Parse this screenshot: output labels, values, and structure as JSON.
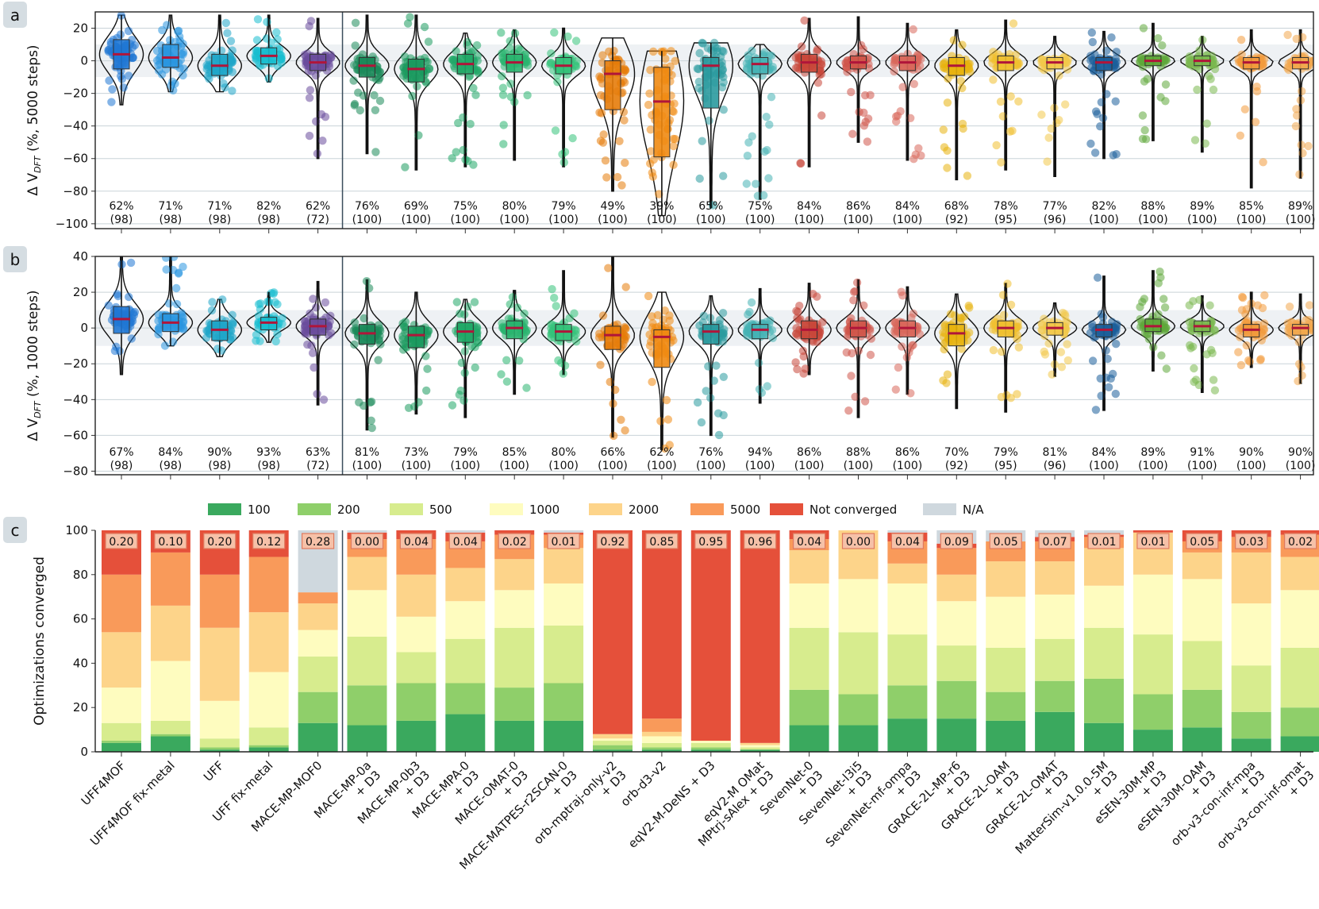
{
  "methods": [
    {
      "name": "UFF4MOF",
      "color": "#1f77d4"
    },
    {
      "name": "UFF4MOF fix-metal",
      "color": "#2a96e0"
    },
    {
      "name": "UFF",
      "color": "#1fa6c9"
    },
    {
      "name": "UFF fix-metal",
      "color": "#17becf"
    },
    {
      "name": "MACE-MP-MOF0",
      "color": "#6a4c9c"
    },
    {
      "name": "MACE-MP-0a\n+ D3",
      "color": "#1b8a5a"
    },
    {
      "name": "MACE-MP-0b3\n+ D3",
      "color": "#1b9a5f"
    },
    {
      "name": "MACE-MPA-0\n+ D3",
      "color": "#21a867"
    },
    {
      "name": "MACE-OMAT-0\n+ D3",
      "color": "#2ab56f"
    },
    {
      "name": "MACE-MATPES-r2SCAN-0\n+ D3",
      "color": "#35c27a"
    },
    {
      "name": "orb-mptraj-only-v2\n+ D3",
      "color": "#e57c0a"
    },
    {
      "name": "orb-d3-v2",
      "color": "#f08a12"
    },
    {
      "name": "eqV2-M-DeNS + D3",
      "color": "#2a9a9e"
    },
    {
      "name": "eqV2-M OMat\nMPtrj-sAlex + D3",
      "color": "#45b3b5"
    },
    {
      "name": "SevenNet-0\n+ D3",
      "color": "#c9473a"
    },
    {
      "name": "SevenNet-l3i5\n+ D3",
      "color": "#d0564a"
    },
    {
      "name": "SevenNet-mf-ompa\n+ D3",
      "color": "#d9685b"
    },
    {
      "name": "GRACE-2L-MP-r6\n+ D3",
      "color": "#e8b20e"
    },
    {
      "name": "GRACE-2L-OAM\n+ D3",
      "color": "#f0c030"
    },
    {
      "name": "GRACE-2L-OMAT\n+ D3",
      "color": "#f3c84a"
    },
    {
      "name": "MatterSim-v1.0.0-5M\n+ D3",
      "color": "#1c5f9a"
    },
    {
      "name": "eSEN-30M-MP\n+ D3",
      "color": "#5fa83a"
    },
    {
      "name": "eSEN-30M-OAM\n+ D3",
      "color": "#7ab84e"
    },
    {
      "name": "orb-v3-con-inf-mpa\n+ D3",
      "color": "#f29a3c"
    },
    {
      "name": "orb-v3-con-inf-omat\n+ D3",
      "color": "#f2a84e"
    }
  ],
  "chart_data": [
    {
      "panel": "a",
      "type": "violin",
      "ylabel": "Δ V",
      "ylabel_sub": "DFT",
      "ylabel_suffix": " (%, 5000 steps)",
      "ylim": [
        -103,
        30
      ],
      "yticks": [
        20,
        0,
        -20,
        -40,
        -60,
        -80,
        -100
      ],
      "ytick_labels": [
        "20",
        "0",
        "−20",
        "−40",
        "−60",
        "−80",
        "−100"
      ],
      "band": [
        -10,
        10
      ],
      "median": [
        4,
        2,
        -3,
        3,
        -1,
        -3,
        -5,
        -2,
        -1,
        -3,
        -8,
        -25,
        -3,
        -2,
        -1,
        -1,
        -1,
        -3,
        -1,
        -1,
        -1,
        0,
        0,
        -1,
        -1
      ],
      "q1": [
        -5,
        -4,
        -9,
        -2,
        -6,
        -10,
        -13,
        -8,
        -7,
        -8,
        -30,
        -59,
        -29,
        -8,
        -7,
        -5,
        -6,
        -9,
        -6,
        -5,
        -6,
        -3,
        -3,
        -5,
        -5
      ],
      "q3": [
        13,
        10,
        4,
        8,
        4,
        2,
        1,
        4,
        4,
        2,
        0,
        -4,
        2,
        2,
        4,
        3,
        3,
        2,
        3,
        2,
        2,
        3,
        3,
        2,
        2
      ],
      "ymin": [
        -27,
        -19,
        -19,
        -13,
        -60,
        -57,
        -67,
        -65,
        -61,
        -65,
        -80,
        -95,
        -90,
        -85,
        -65,
        -50,
        -61,
        -73,
        -67,
        -71,
        -60,
        -49,
        -56,
        -78,
        -72
      ],
      "ymax": [
        28,
        28,
        28,
        28,
        26,
        28,
        28,
        17,
        19,
        20,
        14,
        6,
        11,
        10,
        26,
        27,
        23,
        19,
        25,
        15,
        18,
        23,
        15,
        19,
        19
      ],
      "pct_labels": [
        "62%",
        "71%",
        "71%",
        "82%",
        "62%",
        "76%",
        "69%",
        "75%",
        "80%",
        "79%",
        "49%",
        "39%",
        "65%",
        "75%",
        "84%",
        "86%",
        "84%",
        "68%",
        "78%",
        "77%",
        "82%",
        "88%",
        "89%",
        "85%",
        "89%"
      ],
      "n_labels": [
        "(98)",
        "(98)",
        "(98)",
        "(98)",
        "(72)",
        "(100)",
        "(100)",
        "(100)",
        "(100)",
        "(100)",
        "(100)",
        "(100)",
        "(100)",
        "(100)",
        "(100)",
        "(100)",
        "(100)",
        "(92)",
        "(95)",
        "(96)",
        "(100)",
        "(100)",
        "(100)",
        "(100)",
        "(100)"
      ]
    },
    {
      "panel": "b",
      "type": "violin",
      "ylabel": "Δ V",
      "ylabel_sub": "DFT",
      "ylabel_suffix": " (%, 1000 steps)",
      "ylim": [
        -82,
        40
      ],
      "yticks": [
        40,
        20,
        0,
        -20,
        -40,
        -60,
        -80
      ],
      "ytick_labels": [
        "40",
        "20",
        "0",
        "−20",
        "−40",
        "−60",
        "−80"
      ],
      "band": [
        -10,
        10
      ],
      "median": [
        5,
        3,
        -1,
        3,
        1,
        -3,
        -4,
        -2,
        0,
        -2,
        -4,
        -5,
        -2,
        -1,
        -1,
        0,
        0,
        -3,
        0,
        0,
        -1,
        1,
        1,
        -1,
        0
      ],
      "q1": [
        -3,
        -2,
        -7,
        -1,
        -4,
        -9,
        -11,
        -8,
        -6,
        -7,
        -12,
        -22,
        -9,
        -6,
        -6,
        -5,
        -5,
        -10,
        -5,
        -4,
        -5,
        -2,
        -2,
        -5,
        -4
      ],
      "q3": [
        12,
        8,
        4,
        6,
        5,
        2,
        1,
        3,
        4,
        2,
        1,
        -1,
        2,
        2,
        4,
        4,
        4,
        2,
        4,
        3,
        2,
        5,
        4,
        2,
        2
      ],
      "ymin": [
        -26,
        -10,
        -16,
        -8,
        -43,
        -57,
        -48,
        -50,
        -37,
        -26,
        -61,
        -68,
        -60,
        -42,
        -26,
        -50,
        -37,
        -45,
        -47,
        -27,
        -46,
        -24,
        -36,
        -22,
        -31
      ],
      "ymax": [
        40,
        40,
        16,
        20,
        26,
        27,
        20,
        16,
        21,
        32,
        40,
        20,
        18,
        22,
        25,
        27,
        23,
        19,
        25,
        14,
        29,
        32,
        18,
        20,
        19
      ],
      "pct_labels": [
        "67%",
        "84%",
        "90%",
        "93%",
        "63%",
        "81%",
        "73%",
        "79%",
        "85%",
        "80%",
        "66%",
        "62%",
        "76%",
        "94%",
        "86%",
        "88%",
        "86%",
        "70%",
        "79%",
        "81%",
        "84%",
        "89%",
        "91%",
        "90%",
        "90%"
      ],
      "n_labels": [
        "(98)",
        "(98)",
        "(98)",
        "(98)",
        "(72)",
        "(100)",
        "(100)",
        "(100)",
        "(100)",
        "(100)",
        "(100)",
        "(100)",
        "(100)",
        "(100)",
        "(100)",
        "(100)",
        "(100)",
        "(92)",
        "(95)",
        "(96)",
        "(100)",
        "(100)",
        "(100)",
        "(100)",
        "(100)"
      ]
    },
    {
      "panel": "c",
      "type": "stacked_bar",
      "ylabel": "Optimizations converged",
      "ylim": [
        0,
        100
      ],
      "yticks": [
        0,
        20,
        40,
        60,
        80,
        100
      ],
      "series": [
        {
          "name": "100",
          "color": "#3aa95e",
          "values": [
            4,
            7,
            1,
            2,
            13,
            12,
            14,
            17,
            14,
            14,
            1,
            1,
            1,
            1,
            12,
            12,
            15,
            15,
            14,
            18,
            13,
            10,
            11,
            6,
            7
          ]
        },
        {
          "name": "200",
          "color": "#8fcf6a",
          "values": [
            1,
            1,
            1,
            1,
            14,
            18,
            17,
            14,
            15,
            17,
            2,
            1,
            1,
            0,
            16,
            14,
            15,
            17,
            13,
            14,
            20,
            16,
            17,
            12,
            13
          ]
        },
        {
          "name": "500",
          "color": "#d7ec8e",
          "values": [
            8,
            6,
            4,
            8,
            16,
            22,
            14,
            20,
            27,
            26,
            2,
            2,
            2,
            1,
            28,
            28,
            23,
            16,
            20,
            19,
            23,
            27,
            22,
            21,
            27
          ]
        },
        {
          "name": "1000",
          "color": "#fefcbf",
          "values": [
            16,
            27,
            17,
            25,
            12,
            21,
            16,
            17,
            17,
            19,
            1,
            3,
            1,
            1,
            20,
            24,
            23,
            20,
            23,
            20,
            19,
            27,
            28,
            28,
            26
          ]
        },
        {
          "name": "2000",
          "color": "#fdd48a",
          "values": [
            25,
            25,
            33,
            27,
            12,
            15,
            19,
            15,
            14,
            16,
            2,
            2,
            0,
            1,
            15,
            22,
            9,
            12,
            16,
            15,
            17,
            19,
            12,
            23,
            15
          ]
        },
        {
          "name": "5000",
          "color": "#f99a5a",
          "values": [
            26,
            24,
            24,
            25,
            5,
            8,
            16,
            12,
            11,
            6,
            0,
            6,
            0,
            0,
            5,
            0,
            10,
            12,
            9,
            9,
            5,
            0,
            5,
            7,
            10
          ]
        },
        {
          "name": "Not converged",
          "color": "#e5503a",
          "values": [
            20,
            10,
            20,
            12,
            0,
            3,
            4,
            4,
            2,
            1,
            92,
            85,
            95,
            96,
            4,
            0,
            4,
            2,
            0,
            2,
            1,
            1,
            5,
            3,
            2
          ]
        },
        {
          "name": "N/A",
          "color": "#cfd8de",
          "values": [
            0,
            0,
            0,
            0,
            28,
            1,
            0,
            1,
            0,
            1,
            0,
            0,
            0,
            0,
            0,
            0,
            1,
            6,
            5,
            3,
            2,
            0,
            0,
            0,
            0
          ]
        }
      ],
      "failure_labels": [
        "0.20",
        "0.10",
        "0.20",
        "0.12",
        "0.28",
        "0.00",
        "0.04",
        "0.04",
        "0.02",
        "0.01",
        "0.92",
        "0.85",
        "0.95",
        "0.96",
        "0.04",
        "0.00",
        "0.04",
        "0.09",
        "0.05",
        "0.07",
        "0.01",
        "0.01",
        "0.05",
        "0.03",
        "0.02"
      ],
      "legend_position": "top"
    }
  ],
  "panel_letters": [
    "a",
    "b",
    "c"
  ]
}
